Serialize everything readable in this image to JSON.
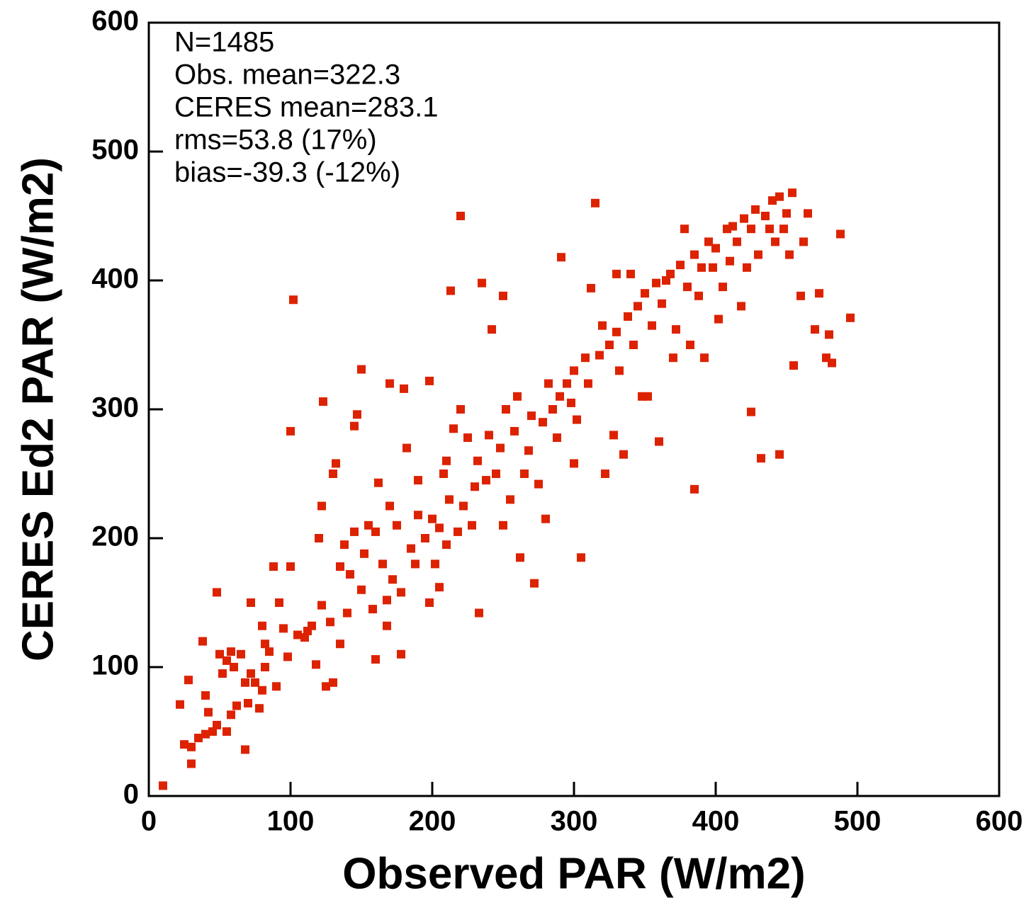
{
  "chart_data": {
    "type": "scatter",
    "xlabel": "Observed PAR (W/m2)",
    "ylabel": "CERES Ed2 PAR (W/m2)",
    "annotations": [
      "N=1485",
      "Obs. mean=322.3",
      "CERES mean=283.1",
      "rms=53.8 (17%)",
      "bias=-39.3 (-12%)"
    ],
    "color": "#dd2200",
    "xlim": [
      0,
      600
    ],
    "ylim": [
      0,
      600
    ],
    "xticks": [
      0,
      100,
      200,
      300,
      400,
      500,
      600
    ],
    "yticks": [
      0,
      100,
      200,
      300,
      400,
      500,
      600
    ],
    "grid": false,
    "x": [
      10,
      22,
      25,
      28,
      30,
      30,
      35,
      38,
      40,
      40,
      42,
      45,
      48,
      48,
      50,
      52,
      55,
      55,
      58,
      58,
      60,
      62,
      65,
      68,
      68,
      70,
      72,
      72,
      75,
      78,
      80,
      80,
      82,
      82,
      85,
      88,
      90,
      92,
      95,
      98,
      100,
      100,
      102,
      105,
      110,
      112,
      115,
      118,
      120,
      122,
      122,
      123,
      125,
      128,
      130,
      130,
      132,
      135,
      135,
      138,
      140,
      142,
      145,
      145,
      147,
      150,
      150,
      152,
      155,
      158,
      160,
      160,
      162,
      165,
      168,
      168,
      170,
      170,
      172,
      175,
      178,
      178,
      180,
      182,
      185,
      188,
      190,
      190,
      195,
      198,
      198,
      200,
      202,
      205,
      205,
      208,
      210,
      210,
      212,
      213,
      215,
      218,
      220,
      220,
      222,
      225,
      228,
      230,
      232,
      233,
      235,
      238,
      240,
      242,
      245,
      248,
      250,
      250,
      252,
      255,
      258,
      260,
      262,
      265,
      268,
      270,
      272,
      275,
      278,
      280,
      282,
      285,
      288,
      290,
      291,
      295,
      298,
      300,
      300,
      302,
      305,
      308,
      310,
      312,
      315,
      318,
      320,
      322,
      325,
      328,
      330,
      330,
      332,
      335,
      338,
      340,
      342,
      345,
      348,
      350,
      352,
      355,
      358,
      360,
      362,
      365,
      368,
      370,
      372,
      375,
      378,
      380,
      382,
      385,
      385,
      388,
      390,
      392,
      395,
      398,
      400,
      402,
      405,
      408,
      410,
      412,
      415,
      418,
      420,
      422,
      425,
      425,
      428,
      430,
      432,
      435,
      438,
      440,
      442,
      445,
      445,
      448,
      450,
      452,
      454,
      455,
      460,
      462,
      465,
      470,
      473,
      478,
      480,
      482,
      488,
      495
    ],
    "values": [
      8,
      71,
      40,
      90,
      25,
      38,
      45,
      120,
      48,
      78,
      65,
      50,
      55,
      158,
      110,
      95,
      105,
      50,
      112,
      63,
      100,
      70,
      110,
      36,
      88,
      72,
      95,
      150,
      88,
      68,
      82,
      132,
      100,
      118,
      112,
      178,
      85,
      150,
      130,
      108,
      178,
      283,
      385,
      125,
      123,
      128,
      132,
      102,
      200,
      148,
      225,
      306,
      85,
      135,
      88,
      250,
      258,
      178,
      118,
      195,
      142,
      172,
      205,
      287,
      296,
      160,
      331,
      188,
      210,
      145,
      106,
      205,
      243,
      180,
      132,
      152,
      320,
      225,
      168,
      210,
      110,
      158,
      316,
      270,
      192,
      180,
      245,
      218,
      200,
      322,
      150,
      215,
      180,
      208,
      162,
      250,
      195,
      260,
      230,
      392,
      285,
      205,
      300,
      450,
      225,
      278,
      210,
      240,
      260,
      142,
      398,
      245,
      280,
      362,
      250,
      270,
      388,
      210,
      300,
      230,
      283,
      310,
      185,
      250,
      268,
      295,
      165,
      242,
      290,
      215,
      320,
      300,
      278,
      310,
      418,
      320,
      305,
      330,
      258,
      292,
      185,
      340,
      320,
      394,
      460,
      342,
      365,
      250,
      350,
      280,
      405,
      360,
      330,
      265,
      372,
      405,
      350,
      380,
      310,
      390,
      310,
      365,
      398,
      275,
      382,
      400,
      405,
      340,
      362,
      412,
      440,
      395,
      350,
      238,
      420,
      388,
      410,
      340,
      430,
      410,
      425,
      370,
      395,
      440,
      415,
      442,
      430,
      380,
      448,
      410,
      298,
      440,
      455,
      420,
      262,
      450,
      440,
      462,
      430,
      265,
      465,
      440,
      452,
      420,
      468,
      334,
      388,
      430,
      452,
      362,
      390,
      340,
      358,
      336,
      436,
      371
    ]
  }
}
